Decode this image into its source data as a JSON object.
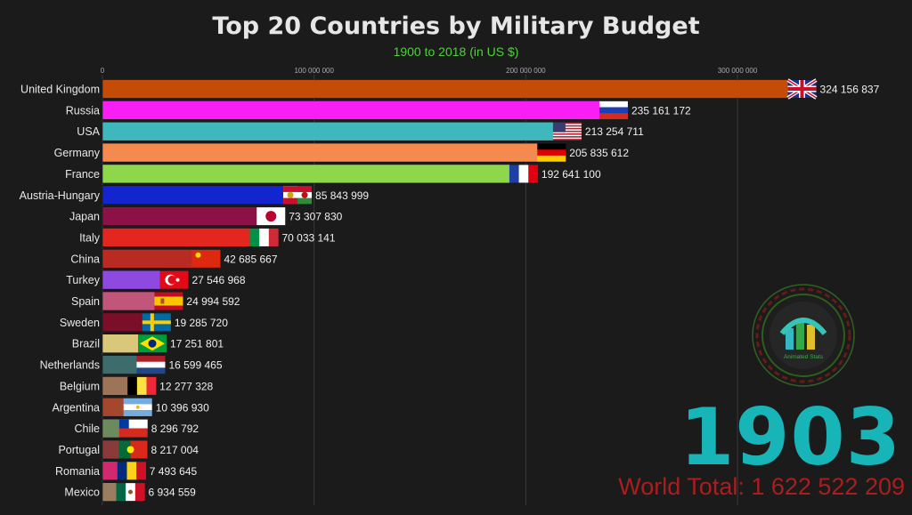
{
  "header": {
    "title": "Top 20 Countries by Military Budget",
    "subtitle": "1900 to 2018 (in US $)"
  },
  "year": "1903",
  "world_total": "World Total: 1 622 522 209",
  "logo": {
    "icon": "animated-stats-logo",
    "text": "Animated Stats"
  },
  "chart_data": {
    "type": "bar",
    "orientation": "horizontal",
    "xlim": [
      0,
      340000000
    ],
    "xticks": [
      0,
      100000000,
      200000000,
      300000000
    ],
    "xtick_labels": [
      "0",
      "100 000 000",
      "200 000 000",
      "300 000 000"
    ],
    "grid": true,
    "categories": [
      "United Kingdom",
      "Russia",
      "USA",
      "Germany",
      "France",
      "Austria-Hungary",
      "Japan",
      "Italy",
      "China",
      "Turkey",
      "Spain",
      "Sweden",
      "Brazil",
      "Netherlands",
      "Belgium",
      "Argentina",
      "Chile",
      "Portugal",
      "Romania",
      "Mexico"
    ],
    "values": [
      324156837,
      235161172,
      213254711,
      205835612,
      192641100,
      85843999,
      73307830,
      70033141,
      42685667,
      27546968,
      24994592,
      19285720,
      17251801,
      16599465,
      12277328,
      10396930,
      8296792,
      8217004,
      7493645,
      6934559
    ],
    "value_labels": [
      "324 156 837",
      "235 161 172",
      "213 254 711",
      "205 835 612",
      "192 641 100",
      "85 843 999",
      "73 307 830",
      "70 033 141",
      "42 685 667",
      "27 546 968",
      "24 994 592",
      "19 285 720",
      "17 251 801",
      "16 599 465",
      "12 277 328",
      "10 396 930",
      "8 296 792",
      "8 217 004",
      "7 493 645",
      "6 934 559"
    ],
    "colors": [
      "#c44b08",
      "#f91ff4",
      "#3fb8bd",
      "#f58a4f",
      "#8ed64a",
      "#1325cf",
      "#8b1147",
      "#e3261e",
      "#b92b22",
      "#8e4ae0",
      "#c2557a",
      "#7b0f2a",
      "#d9c87a",
      "#3e6b6b",
      "#9d7457",
      "#a5462e",
      "#6d8a5e",
      "#8b3a3a",
      "#d2286e",
      "#9d7d5f"
    ],
    "flags": [
      "uk-flag-icon",
      "russia-flag-icon",
      "usa-flag-icon",
      "germany-flag-icon",
      "france-flag-icon",
      "austria-hungary-flag-icon",
      "japan-flag-icon",
      "italy-flag-icon",
      "china-flag-icon",
      "turkey-flag-icon",
      "spain-flag-icon",
      "sweden-flag-icon",
      "brazil-flag-icon",
      "netherlands-flag-icon",
      "belgium-flag-icon",
      "argentina-flag-icon",
      "chile-flag-icon",
      "portugal-flag-icon",
      "romania-flag-icon",
      "mexico-flag-icon"
    ]
  }
}
